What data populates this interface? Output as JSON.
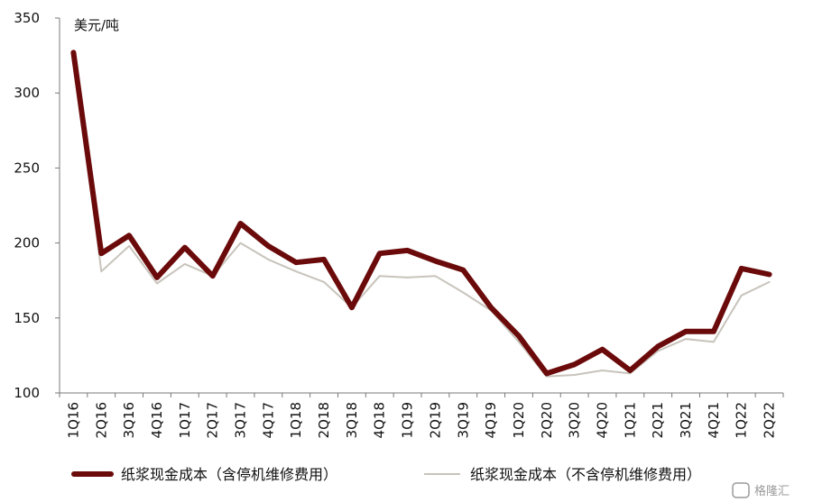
{
  "chart_data": {
    "type": "line",
    "ylabel": "美元/吨",
    "ylim": [
      100,
      350
    ],
    "yticks": [
      "100",
      "150",
      "200",
      "250",
      "300",
      "350"
    ],
    "grid": false,
    "legend_position": "bottom",
    "categories": [
      "1Q16",
      "2Q16",
      "3Q16",
      "4Q16",
      "1Q17",
      "2Q17",
      "3Q17",
      "4Q17",
      "1Q18",
      "2Q18",
      "3Q18",
      "4Q18",
      "1Q19",
      "2Q19",
      "3Q19",
      "4Q19",
      "1Q20",
      "2Q20",
      "3Q20",
      "4Q20",
      "1Q21",
      "2Q21",
      "3Q21",
      "4Q21",
      "1Q22",
      "2Q22"
    ],
    "series": [
      {
        "name": "纸浆现金成本（含停机维修费用）",
        "color": "#6b0a0a",
        "values": [
          327,
          193,
          205,
          177,
          197,
          178,
          213,
          198,
          187,
          189,
          157,
          193,
          195,
          188,
          182,
          157,
          138,
          113,
          119,
          129,
          115,
          131,
          141,
          141,
          183,
          179
        ]
      },
      {
        "name": "纸浆现金成本（不含停机维修费用）",
        "color": "#c8c4bc",
        "values": [
          327,
          181,
          198,
          173,
          186,
          178,
          200,
          189,
          181,
          174,
          157,
          178,
          177,
          178,
          167,
          155,
          134,
          111,
          112,
          115,
          113,
          128,
          136,
          134,
          165,
          174
        ]
      }
    ]
  },
  "watermark": "格隆汇"
}
